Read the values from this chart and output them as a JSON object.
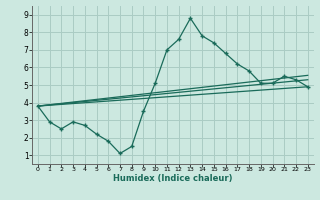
{
  "xlabel": "Humidex (Indice chaleur)",
  "ylabel": "",
  "bg_color": "#cce8e0",
  "grid_color": "#aaccc4",
  "line_color": "#1a6b5a",
  "xlim": [
    -0.5,
    23.5
  ],
  "ylim": [
    0.5,
    9.5
  ],
  "xticks": [
    0,
    1,
    2,
    3,
    4,
    5,
    6,
    7,
    8,
    9,
    10,
    11,
    12,
    13,
    14,
    15,
    16,
    17,
    18,
    19,
    20,
    21,
    22,
    23
  ],
  "yticks": [
    1,
    2,
    3,
    4,
    5,
    6,
    7,
    8,
    9
  ],
  "line1_x": [
    0,
    1,
    2,
    3,
    4,
    5,
    6,
    7,
    8,
    9,
    10,
    11,
    12,
    13,
    14,
    15,
    16,
    17,
    18,
    19,
    20,
    21,
    22,
    23
  ],
  "line1_y": [
    3.8,
    2.9,
    2.5,
    2.9,
    2.7,
    2.2,
    1.8,
    1.1,
    1.5,
    3.5,
    5.1,
    7.0,
    7.6,
    8.8,
    7.8,
    7.4,
    6.8,
    6.2,
    5.8,
    5.1,
    5.1,
    5.5,
    5.3,
    4.9
  ],
  "line2_x": [
    0,
    23
  ],
  "line2_y": [
    3.8,
    4.9
  ],
  "line3_x": [
    0,
    23
  ],
  "line3_y": [
    3.8,
    5.3
  ],
  "line4_x": [
    0,
    23
  ],
  "line4_y": [
    3.8,
    5.55
  ]
}
